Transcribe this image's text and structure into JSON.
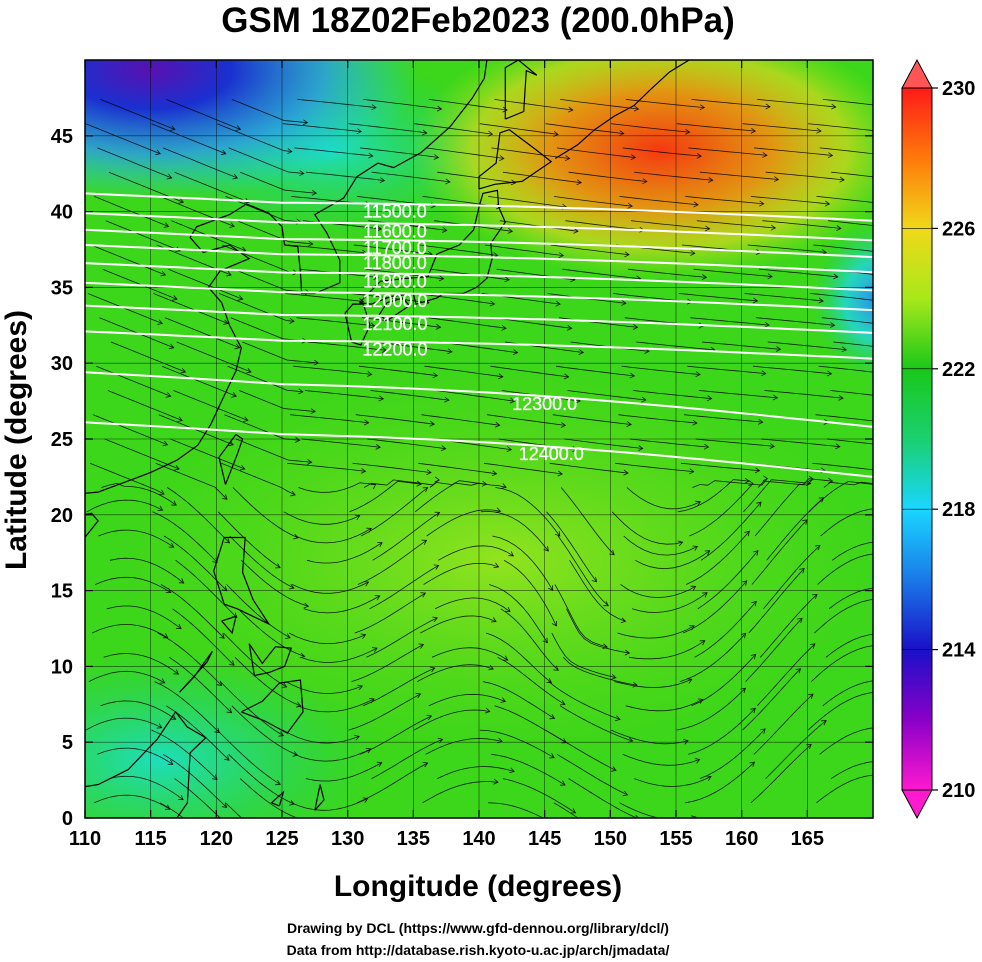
{
  "title": "GSM 18Z02Feb2023 (200.0hPa)",
  "map": {
    "xlabel": "Longitude (degrees)",
    "ylabel": "Latitude  (degrees)",
    "lon_range": [
      110,
      170
    ],
    "lat_range": [
      0,
      50
    ],
    "lon_ticks": [
      "110",
      "115",
      "120",
      "125",
      "130",
      "135",
      "140",
      "145",
      "150",
      "155",
      "160",
      "165"
    ],
    "lat_ticks": [
      "0",
      "5",
      "10",
      "15",
      "20",
      "25",
      "30",
      "35",
      "40",
      "45"
    ],
    "grid": true,
    "shaded_field": "temperature",
    "streamlines": true
  },
  "colorbar": {
    "min": 210,
    "max": 230,
    "labels": [
      "210",
      "214",
      "218",
      "222",
      "226",
      "230"
    ],
    "colors": [
      "#ff19cf",
      "#8a00c8",
      "#1a10c8",
      "#1a7ae8",
      "#1ad6ff",
      "#1ad070",
      "#1ac81a",
      "#a8e81a",
      "#f0d81a",
      "#ff7a0a",
      "#ff1a1a",
      "#ff5555"
    ]
  },
  "contours": {
    "field": "geopotential height",
    "labels": [
      {
        "text": "11500.0",
        "lon": 133.6,
        "lat": 40.0
      },
      {
        "text": "11600.0",
        "lon": 133.6,
        "lat": 38.7
      },
      {
        "text": "11700.0",
        "lon": 133.6,
        "lat": 37.6
      },
      {
        "text": "11800.0",
        "lon": 133.6,
        "lat": 36.6
      },
      {
        "text": "11900.0",
        "lon": 133.6,
        "lat": 35.4
      },
      {
        "text": "12000.0",
        "lon": 133.6,
        "lat": 34.1
      },
      {
        "text": "12100.0",
        "lon": 133.6,
        "lat": 32.6
      },
      {
        "text": "12200.0",
        "lon": 133.6,
        "lat": 30.9
      },
      {
        "text": "12300.0",
        "lon": 145.0,
        "lat": 27.3
      },
      {
        "text": "12400.0",
        "lon": 145.5,
        "lat": 24.0
      }
    ]
  },
  "credits": {
    "drawing": "Drawing by DCL (https://www.gfd-dennou.org/library/dcl/)",
    "data": "Data from http://database.rish.kyoto-u.ac.jp/arch/jmadata/"
  }
}
